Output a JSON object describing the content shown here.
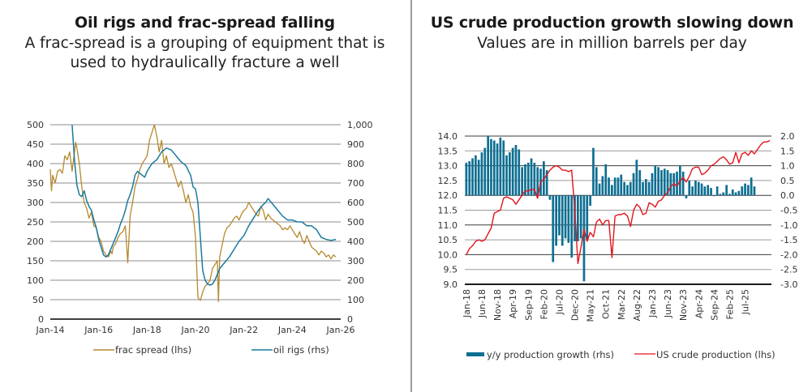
{
  "left": {
    "title": "Oil rigs and frac-spread falling",
    "subtitle_line1": "A frac-spread is a grouping of equipment that is",
    "subtitle_line2": "used to hydraulically fracture a well"
  },
  "right": {
    "title": "US crude production growth slowing down",
    "subtitle": "Values are in million barrels per day"
  },
  "chart_data": [
    {
      "type": "line",
      "title": "Oil rigs and frac-spread falling",
      "subtitle": "A frac-spread is a grouping of equipment that is used to hydraulically fracture a well",
      "x_tick_labels": [
        "Jan-14",
        "Jan-16",
        "Jan-18",
        "Jan-20",
        "Jan-22",
        "Jan-24",
        "Jan-26"
      ],
      "x_range": [
        2014.0,
        2026.0
      ],
      "y_left": {
        "range": [
          0,
          500
        ],
        "ticks": [
          "0",
          "50",
          "100",
          "150",
          "200",
          "250",
          "300",
          "350",
          "400",
          "450",
          "500"
        ]
      },
      "y_right": {
        "range": [
          0,
          1000
        ],
        "ticks": [
          "0",
          "100",
          "200",
          "300",
          "400",
          "500",
          "600",
          "700",
          "800",
          "900",
          "1,000"
        ]
      },
      "grid": true,
      "legend_position": "bottom",
      "colors": {
        "frac": "#b5892e",
        "rigs": "#1a7a9e",
        "grid": "#8c8c8c",
        "axis": "#404040"
      },
      "series": [
        {
          "name": "frac spread (lhs)",
          "axis": "left",
          "x": [
            2014.0,
            2014.05,
            2014.1,
            2014.2,
            2014.3,
            2014.4,
            2014.5,
            2014.6,
            2014.7,
            2014.8,
            2014.9,
            2015.0,
            2015.05,
            2015.1,
            2015.2,
            2015.3,
            2015.4,
            2015.5,
            2015.6,
            2015.7,
            2015.8,
            2015.9,
            2016.0,
            2016.1,
            2016.2,
            2016.3,
            2016.4,
            2016.5,
            2016.55,
            2016.6,
            2016.7,
            2016.8,
            2016.9,
            2017.0,
            2017.1,
            2017.2,
            2017.3,
            2017.4,
            2017.5,
            2017.6,
            2017.7,
            2017.8,
            2017.9,
            2018.0,
            2018.1,
            2018.2,
            2018.3,
            2018.4,
            2018.5,
            2018.6,
            2018.7,
            2018.8,
            2018.9,
            2019.0,
            2019.1,
            2019.2,
            2019.3,
            2019.4,
            2019.5,
            2019.6,
            2019.7,
            2019.8,
            2019.9,
            2020.0,
            2020.1,
            2020.2,
            2020.3,
            2020.4,
            2020.5,
            2020.6,
            2020.7,
            2020.8,
            2020.9,
            2020.95,
            2021.0,
            2021.1,
            2021.2,
            2021.3,
            2021.4,
            2021.5,
            2021.6,
            2021.7,
            2021.8,
            2021.9,
            2022.0,
            2022.1,
            2022.2,
            2022.3,
            2022.4,
            2022.5,
            2022.6,
            2022.7,
            2022.8,
            2022.9,
            2023.0,
            2023.1,
            2023.2,
            2023.3,
            2023.4,
            2023.5,
            2023.6,
            2023.7,
            2023.8,
            2023.9,
            2024.0,
            2024.1,
            2024.2,
            2024.3,
            2024.4,
            2024.5,
            2024.6,
            2024.7,
            2024.8,
            2024.9,
            2025.0,
            2025.1,
            2025.2,
            2025.3,
            2025.4,
            2025.5,
            2025.6,
            2025.7,
            2025.8
          ],
          "values": [
            385,
            330,
            370,
            350,
            380,
            385,
            375,
            420,
            410,
            430,
            380,
            430,
            455,
            440,
            400,
            340,
            300,
            285,
            260,
            275,
            240,
            235,
            210,
            200,
            175,
            165,
            160,
            175,
            168,
            185,
            195,
            210,
            220,
            225,
            240,
            145,
            265,
            300,
            340,
            360,
            385,
            400,
            410,
            420,
            460,
            480,
            500,
            470,
            430,
            460,
            400,
            420,
            390,
            400,
            380,
            360,
            340,
            355,
            330,
            300,
            320,
            290,
            275,
            210,
            55,
            48,
            70,
            85,
            90,
            100,
            130,
            140,
            150,
            45,
            160,
            190,
            220,
            235,
            240,
            250,
            260,
            265,
            255,
            270,
            280,
            285,
            300,
            290,
            280,
            270,
            265,
            290,
            280,
            255,
            270,
            260,
            255,
            250,
            245,
            240,
            230,
            235,
            230,
            240,
            230,
            220,
            210,
            225,
            205,
            195,
            215,
            200,
            185,
            180,
            175,
            165,
            175,
            170,
            160,
            165,
            155,
            165,
            160
          ]
        },
        {
          "name": "oil rigs (rhs)",
          "axis": "right",
          "x": [
            2014.9,
            2015.0,
            2015.1,
            2015.2,
            2015.3,
            2015.4,
            2015.5,
            2015.6,
            2015.7,
            2015.8,
            2015.9,
            2016.0,
            2016.1,
            2016.2,
            2016.3,
            2016.4,
            2016.5,
            2016.6,
            2016.7,
            2016.8,
            2016.9,
            2017.0,
            2017.1,
            2017.2,
            2017.3,
            2017.4,
            2017.5,
            2017.6,
            2017.7,
            2017.8,
            2017.9,
            2018.0,
            2018.2,
            2018.4,
            2018.6,
            2018.8,
            2019.0,
            2019.2,
            2019.4,
            2019.6,
            2019.8,
            2019.9,
            2020.0,
            2020.1,
            2020.2,
            2020.3,
            2020.4,
            2020.5,
            2020.6,
            2020.7,
            2020.8,
            2020.9,
            2021.0,
            2021.2,
            2021.4,
            2021.6,
            2021.8,
            2022.0,
            2022.2,
            2022.4,
            2022.6,
            2022.8,
            2022.9,
            2023.0,
            2023.2,
            2023.4,
            2023.6,
            2023.8,
            2024.0,
            2024.2,
            2024.4,
            2024.6,
            2024.8,
            2025.0,
            2025.2,
            2025.4,
            2025.6,
            2025.8
          ],
          "values": [
            1000,
            820,
            690,
            640,
            630,
            660,
            610,
            580,
            560,
            510,
            470,
            410,
            370,
            330,
            320,
            330,
            360,
            390,
            420,
            450,
            490,
            520,
            560,
            610,
            640,
            680,
            740,
            760,
            750,
            740,
            730,
            760,
            800,
            820,
            860,
            880,
            870,
            840,
            810,
            790,
            740,
            680,
            670,
            600,
            420,
            250,
            200,
            180,
            175,
            180,
            200,
            230,
            260,
            290,
            320,
            360,
            400,
            430,
            480,
            520,
            560,
            590,
            600,
            620,
            590,
            560,
            530,
            510,
            510,
            500,
            500,
            480,
            480,
            460,
            420,
            410,
            405,
            410
          ]
        }
      ]
    },
    {
      "type": "bar",
      "title": "US crude production growth slowing down",
      "subtitle": "Values are in million barrels per day",
      "x_tick_labels": [
        "Jan-18",
        "Jun-18",
        "Nov-18",
        "Apr-19",
        "Sep-19",
        "Feb-20",
        "Jul-20",
        "Dec-20",
        "May-21",
        "Oct-21",
        "Mar-22",
        "Aug-22",
        "Jan-23",
        "Jun-23",
        "Nov-23",
        "Apr-24",
        "Sep-24",
        "Feb-25",
        "Jul-25"
      ],
      "y_left": {
        "range": [
          9.0,
          14.0
        ],
        "ticks": [
          "9.0",
          "9.5",
          "10.0",
          "10.5",
          "11.0",
          "11.5",
          "12.0",
          "12.5",
          "13.0",
          "13.5",
          "14.0"
        ]
      },
      "y_right": {
        "range": [
          -3.0,
          2.0
        ],
        "ticks": [
          "-3.0",
          "-2.5",
          "-2.0",
          "-1.5",
          "-1.0",
          "-0.5",
          "0.0",
          "0.5",
          "1.0",
          "1.5",
          "2.0"
        ]
      },
      "grid": true,
      "legend_position": "bottom",
      "colors": {
        "bars": "#0e6f92",
        "line": "#e3141c",
        "grid": "#8c8c8c",
        "axis": "#1a1a1a"
      },
      "series": [
        {
          "name": "y/y production growth (rhs)",
          "type": "bar",
          "axis": "right",
          "values": [
            1.1,
            1.15,
            1.25,
            1.35,
            1.2,
            1.45,
            1.6,
            2.0,
            1.9,
            1.85,
            1.75,
            1.95,
            1.85,
            1.35,
            1.45,
            1.6,
            1.7,
            1.55,
            0.95,
            1.05,
            1.1,
            1.25,
            1.1,
            0.95,
            0.9,
            1.15,
            0.85,
            -0.15,
            -2.25,
            -1.7,
            -1.35,
            -1.7,
            -1.45,
            -1.6,
            -2.1,
            -1.55,
            -1.55,
            -1.45,
            -2.9,
            -1.5,
            -0.35,
            1.6,
            0.95,
            0.4,
            0.65,
            1.05,
            0.6,
            0.35,
            0.6,
            0.6,
            0.7,
            0.45,
            0.35,
            0.45,
            0.75,
            1.2,
            0.85,
            0.45,
            0.55,
            0.45,
            0.75,
            1.0,
            0.95,
            0.85,
            0.9,
            0.85,
            0.75,
            0.75,
            0.8,
            1.0,
            0.8,
            -0.1,
            0.5,
            0.3,
            0.5,
            0.45,
            0.4,
            0.3,
            0.35,
            0.25,
            0.0,
            0.3,
            0.05,
            0.1,
            0.35,
            0.05,
            0.2,
            0.1,
            0.15,
            0.3,
            0.4,
            0.35,
            0.6,
            0.3
          ]
        },
        {
          "name": "US crude production (lhs)",
          "type": "line",
          "axis": "left",
          "values": [
            10.0,
            10.2,
            10.3,
            10.45,
            10.5,
            10.45,
            10.5,
            10.7,
            10.9,
            11.4,
            11.45,
            11.5,
            11.9,
            11.95,
            11.9,
            11.85,
            11.7,
            11.85,
            12.0,
            12.15,
            12.15,
            12.2,
            12.2,
            11.9,
            12.45,
            12.55,
            12.7,
            12.85,
            12.95,
            13.0,
            12.95,
            12.85,
            12.85,
            12.8,
            12.85,
            11.55,
            9.7,
            10.25,
            10.85,
            10.45,
            10.75,
            10.6,
            11.1,
            11.2,
            11.0,
            11.15,
            11.15,
            9.9,
            11.3,
            11.35,
            11.35,
            11.4,
            11.3,
            10.95,
            11.5,
            11.7,
            11.6,
            11.35,
            11.4,
            11.75,
            11.7,
            11.6,
            11.8,
            11.85,
            12.0,
            12.1,
            12.3,
            12.4,
            12.3,
            12.5,
            12.6,
            12.45,
            12.65,
            12.9,
            12.95,
            12.95,
            12.7,
            12.75,
            12.85,
            13.0,
            13.05,
            13.15,
            13.25,
            13.3,
            13.2,
            13.05,
            13.1,
            13.45,
            13.1,
            13.4,
            13.45,
            13.35,
            13.5,
            13.4,
            13.55,
            13.7,
            13.8,
            13.8,
            13.85
          ]
        }
      ]
    }
  ]
}
